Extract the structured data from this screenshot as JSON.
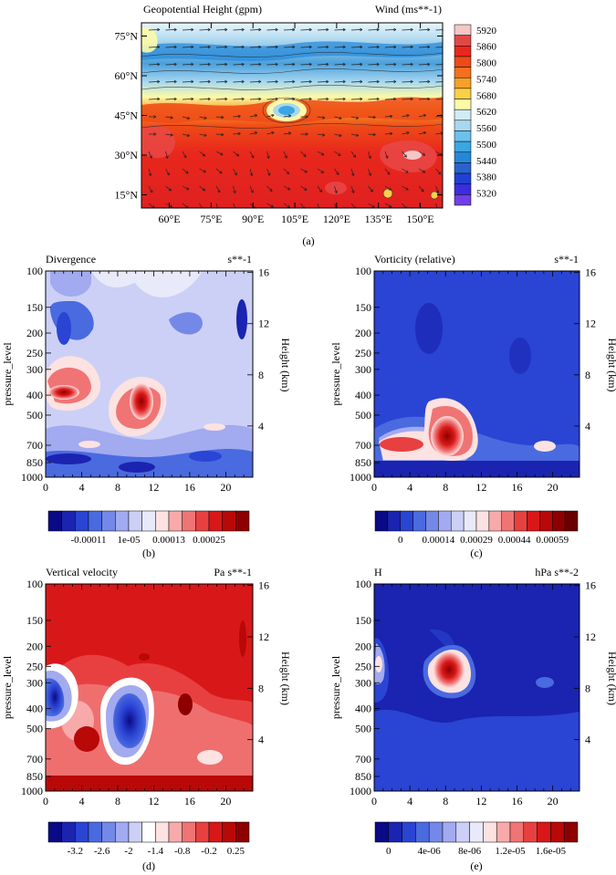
{
  "chart_data": [
    {
      "id": "a",
      "type": "heatmap",
      "title_left": "Geopotential Height (gpm)",
      "title_right": "Wind (ms**-1)",
      "caption": "(a)",
      "x_ticks": [
        "60°E",
        "75°E",
        "90°E",
        "105°E",
        "120°E",
        "135°E",
        "150°E"
      ],
      "x_tick_values": [
        60,
        75,
        90,
        105,
        120,
        135,
        150
      ],
      "xlim": [
        50,
        158
      ],
      "y_ticks": [
        "15°N",
        "30°N",
        "45°N",
        "60°N",
        "75°N"
      ],
      "y_tick_values": [
        15,
        30,
        45,
        60,
        75
      ],
      "ylim": [
        10,
        80
      ],
      "colorbar_labels": [
        "5920",
        "5860",
        "5800",
        "5740",
        "5680",
        "5620",
        "5560",
        "5500",
        "5440",
        "5380",
        "5320"
      ],
      "colorbar_colors": [
        "#f4c6c6",
        "#e04848",
        "#e8281c",
        "#ee4a18",
        "#f27020",
        "#f6a028",
        "#fad048",
        "#fdf9a8",
        "#d2ecf6",
        "#a8d8f0",
        "#6cc0ec",
        "#3aa6e2",
        "#2488d8",
        "#2a62cc",
        "#2040d4",
        "#3a2ee0",
        "#7040e4"
      ]
    },
    {
      "id": "b",
      "type": "heatmap",
      "title_left": "Divergence",
      "title_right": "s**-1",
      "caption": "(b)",
      "x_ticks": [
        "0",
        "4",
        "8",
        "12",
        "16",
        "20"
      ],
      "x_tick_values": [
        0,
        4,
        8,
        12,
        16,
        20
      ],
      "xlim": [
        0,
        23
      ],
      "ylabel": "pressure_level",
      "y_ticks": [
        "100",
        "150",
        "200",
        "250",
        "300",
        "400",
        "500",
        "700",
        "850",
        "1000"
      ],
      "y_tick_values": [
        100,
        150,
        200,
        250,
        300,
        400,
        500,
        700,
        850,
        1000
      ],
      "ylim": [
        100,
        1000
      ],
      "y2label": "Height (km)",
      "y2_ticks": [
        "4",
        "8",
        "12",
        "16"
      ],
      "y2_tick_values": [
        4,
        8,
        12,
        16
      ],
      "colorbar_labels": [
        "-0.00011",
        "1e-05",
        "0.00013",
        "0.00025"
      ],
      "colorbar_label_positions": [
        3,
        6,
        9,
        12
      ],
      "colorbar_colors": [
        "#0a0a86",
        "#1a24b0",
        "#2a44d4",
        "#4a6ae0",
        "#7488e8",
        "#a2aaf0",
        "#ccd0f6",
        "#e8eaf9",
        "#fde2e2",
        "#f8aaaa",
        "#f07474",
        "#e84040",
        "#d81818",
        "#b80808",
        "#8e0000"
      ]
    },
    {
      "id": "c",
      "type": "heatmap",
      "title_left": "Vorticity (relative)",
      "title_right": "s**-1",
      "caption": "(c)",
      "x_ticks": [
        "0",
        "4",
        "8",
        "12",
        "16",
        "20"
      ],
      "x_tick_values": [
        0,
        4,
        8,
        12,
        16,
        20
      ],
      "xlim": [
        0,
        23
      ],
      "ylabel": "pressure_level",
      "y_ticks": [
        "100",
        "150",
        "200",
        "250",
        "300",
        "400",
        "500",
        "700",
        "850",
        "1000"
      ],
      "y_tick_values": [
        100,
        150,
        200,
        250,
        300,
        400,
        500,
        700,
        850,
        1000
      ],
      "ylim": [
        100,
        1000
      ],
      "y2label": "Height (km)",
      "y2_ticks": [
        "4",
        "8",
        "12",
        "16"
      ],
      "y2_tick_values": [
        4,
        8,
        12,
        16
      ],
      "colorbar_labels": [
        "0",
        "0.00014",
        "0.00029",
        "0.00044",
        "0.00059"
      ],
      "colorbar_label_positions": [
        2,
        5,
        8,
        11,
        14
      ],
      "colorbar_colors": [
        "#0a0a86",
        "#1a24b0",
        "#2a44d4",
        "#4a6ae0",
        "#7488e8",
        "#a2aaf0",
        "#ccd0f6",
        "#e8eaf9",
        "#fde2e2",
        "#f8aaaa",
        "#f07474",
        "#e84040",
        "#d81818",
        "#b80808",
        "#8e0000",
        "#6a0000"
      ]
    },
    {
      "id": "d",
      "type": "heatmap",
      "title_left": "Vertical velocity",
      "title_right": "Pa s**-1",
      "caption": "(d)",
      "x_ticks": [
        "0",
        "4",
        "8",
        "12",
        "16",
        "20"
      ],
      "x_tick_values": [
        0,
        4,
        8,
        12,
        16,
        20
      ],
      "xlim": [
        0,
        23
      ],
      "ylabel": "pressure_level",
      "y_ticks": [
        "100",
        "150",
        "200",
        "250",
        "300",
        "400",
        "500",
        "700",
        "850",
        "1000"
      ],
      "y_tick_values": [
        100,
        150,
        200,
        250,
        300,
        400,
        500,
        700,
        850,
        1000
      ],
      "ylim": [
        100,
        1000
      ],
      "y2label": "Height (km)",
      "y2_ticks": [
        "4",
        "8",
        "12",
        "16"
      ],
      "y2_tick_values": [
        4,
        8,
        12,
        16
      ],
      "colorbar_labels": [
        "-3.2",
        "-2.6",
        "-2",
        "-1.4",
        "-0.8",
        "-0.2",
        "0.25"
      ],
      "colorbar_label_positions": [
        2,
        4,
        6,
        8,
        10,
        12,
        14
      ],
      "colorbar_colors": [
        "#0a0a86",
        "#1a24b0",
        "#2a44d4",
        "#4a6ae0",
        "#7488e8",
        "#a2aaf0",
        "#ccd0f6",
        "#ffffff",
        "#fde2e2",
        "#f8aaaa",
        "#f07474",
        "#e84040",
        "#d81818",
        "#b80808",
        "#8e0000"
      ]
    },
    {
      "id": "e",
      "type": "heatmap",
      "title_left": "H",
      "title_right": "hPa s**-2",
      "caption": "(e)",
      "x_ticks": [
        "0",
        "4",
        "8",
        "12",
        "16",
        "20"
      ],
      "x_tick_values": [
        0,
        4,
        8,
        12,
        16,
        20
      ],
      "xlim": [
        0,
        23
      ],
      "ylabel": "pressure_level",
      "y_ticks": [
        "100",
        "150",
        "200",
        "250",
        "300",
        "400",
        "500",
        "700",
        "850",
        "1000"
      ],
      "y_tick_values": [
        100,
        150,
        200,
        250,
        300,
        400,
        500,
        700,
        850,
        1000
      ],
      "ylim": [
        100,
        1000
      ],
      "y2label": "Height (km)",
      "y2_ticks": [
        "4",
        "8",
        "12",
        "16"
      ],
      "y2_tick_values": [
        4,
        8,
        12,
        16
      ],
      "colorbar_labels": [
        "0",
        "4e-06",
        "8e-06",
        "1.2e-05",
        "1.6e-05"
      ],
      "colorbar_label_positions": [
        1,
        4,
        7,
        10,
        13
      ],
      "colorbar_colors": [
        "#0a0a86",
        "#1a24b0",
        "#2a44d4",
        "#4a6ae0",
        "#7488e8",
        "#a2aaf0",
        "#ccd0f6",
        "#e8eaf9",
        "#fde2e2",
        "#f8aaaa",
        "#f07474",
        "#e84040",
        "#d81818",
        "#b80808",
        "#8e0000"
      ]
    }
  ]
}
